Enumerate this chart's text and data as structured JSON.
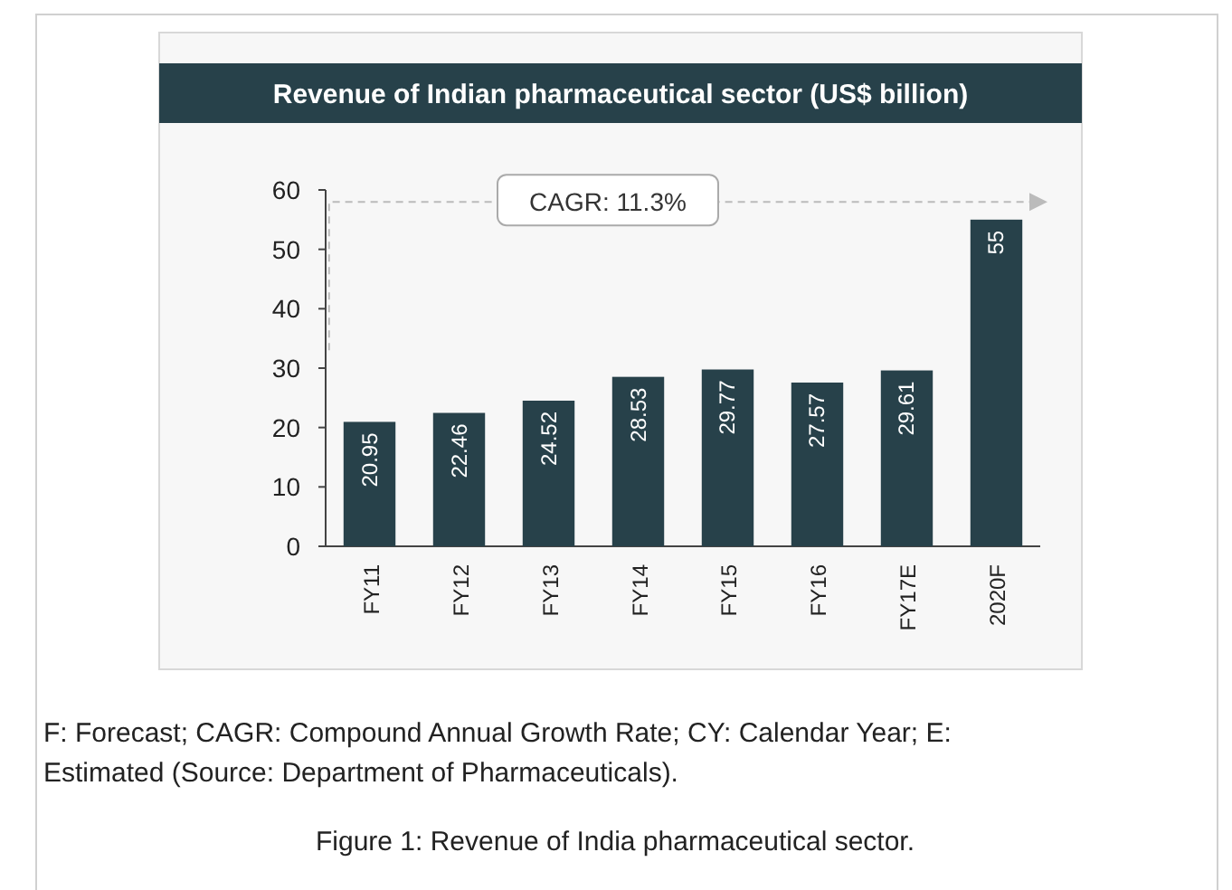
{
  "chart_data": {
    "type": "bar",
    "title": "Revenue of Indian pharmaceutical sector (US$ billion)",
    "categories": [
      "FY11",
      "FY12",
      "FY13",
      "FY14",
      "FY15",
      "FY16",
      "FY17E",
      "2020F"
    ],
    "values": [
      20.95,
      22.46,
      24.52,
      28.53,
      29.77,
      27.57,
      29.61,
      55
    ],
    "color": "#27414a",
    "ylim": [
      0,
      60
    ],
    "yticks": [
      0,
      10,
      20,
      30,
      40,
      50,
      60
    ],
    "grid": false,
    "data_labels": true,
    "annotations": [
      "CAGR: 11.3%",
      "F: Forecast; CAGR: Compound Annual Growth Rate; CY: Calendar Year; E: Estimated (Source: Department of Pharmaceuticals).",
      "Figure 1: Revenue of India pharmaceutical sector."
    ]
  }
}
